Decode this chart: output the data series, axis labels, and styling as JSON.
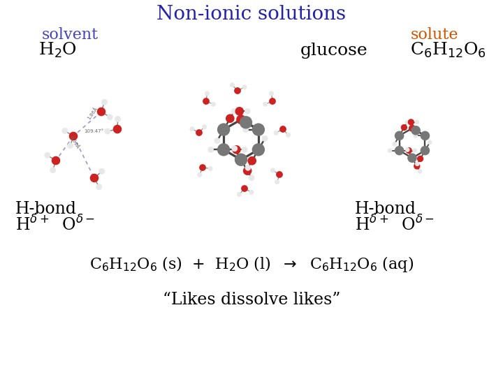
{
  "title": "Non-ionic solutions",
  "title_color": "#2222aa",
  "title_fontsize": 20,
  "bg_color": "#ffffff",
  "solvent_label": "solvent",
  "solvent_color": "#4444bb",
  "solute_label": "solute",
  "solute_color": "#cc5500",
  "glucose_label": "glucose",
  "hbond_left_line1": "H-bond",
  "hbond_right_line1": "H-bond",
  "tagline": "“Likes dissolve likes”"
}
